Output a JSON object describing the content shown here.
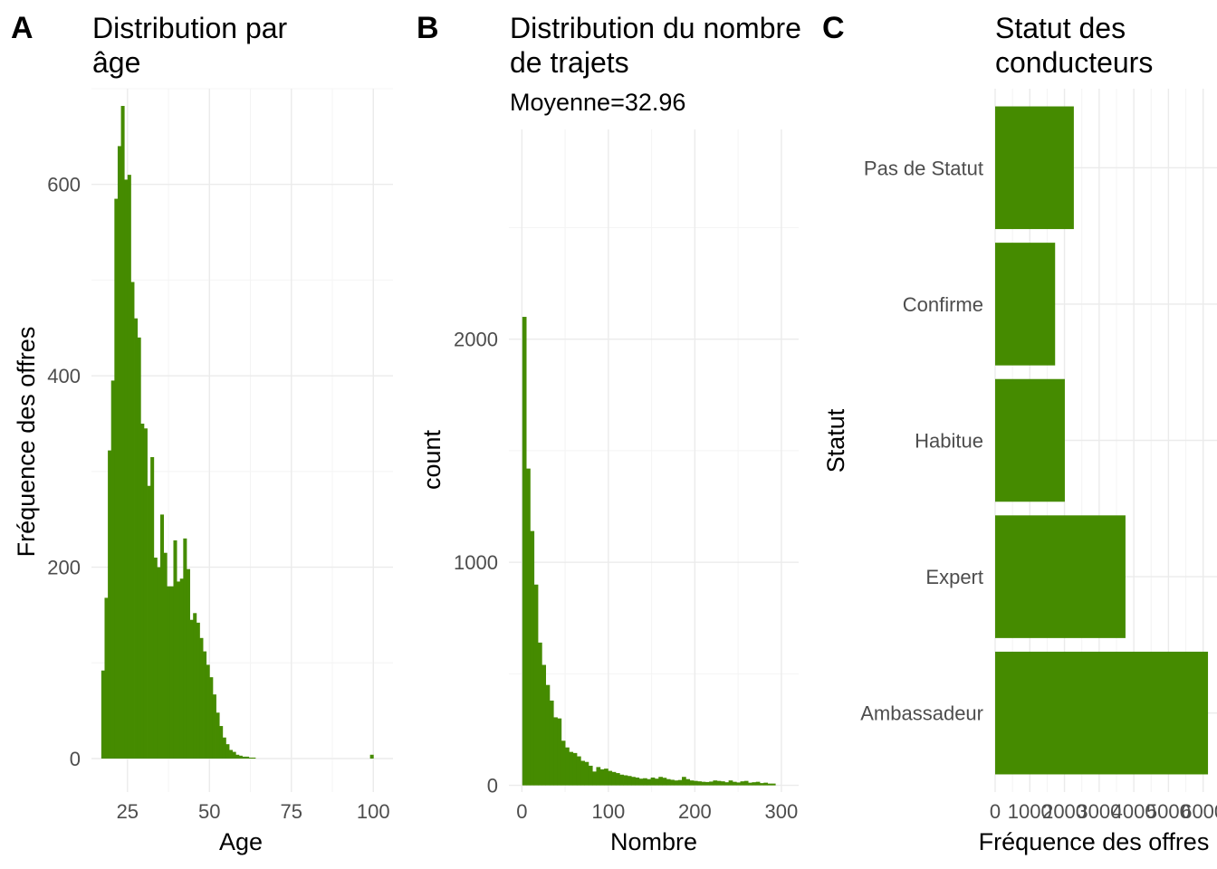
{
  "figure": {
    "tags": [
      "A",
      "B",
      "C"
    ]
  },
  "accent_color": "#458B00",
  "chart_data": [
    {
      "type": "bar",
      "tag": "A",
      "title": [
        "Distribution par",
        "âge"
      ],
      "subtitle": "",
      "xlabel": "Age",
      "ylabel": "Fréquence des offres",
      "xlim": [
        14,
        106
      ],
      "ylim": [
        -35,
        700
      ],
      "xticks": [
        25,
        50,
        75,
        100
      ],
      "yticks": [
        0,
        200,
        400,
        600
      ],
      "bin_start": 17,
      "bin_width": 1,
      "values": [
        92,
        168,
        322,
        395,
        585,
        640,
        682,
        605,
        610,
        498,
        460,
        440,
        350,
        345,
        285,
        315,
        210,
        200,
        255,
        215,
        180,
        180,
        228,
        185,
        188,
        230,
        198,
        145,
        152,
        142,
        126,
        112,
        98,
        85,
        67,
        48,
        34,
        22,
        15,
        9,
        7,
        4,
        3,
        2,
        2,
        1,
        1,
        0,
        0,
        0,
        0,
        0,
        0,
        0,
        0,
        0,
        0,
        0,
        0,
        0,
        0,
        0,
        0,
        0,
        0,
        0,
        0,
        0,
        0,
        0,
        0,
        0,
        0,
        0,
        0,
        0,
        0,
        0,
        0,
        0,
        0,
        0,
        4
      ]
    },
    {
      "type": "bar",
      "tag": "B",
      "title": [
        "Distribution du nombre",
        "de trajets"
      ],
      "subtitle": "Moyenne=32.96",
      "xlabel": "Nombre",
      "ylabel": "count",
      "xlim": [
        -15,
        320
      ],
      "ylim": [
        -30,
        2940
      ],
      "xticks": [
        0,
        100,
        200,
        300
      ],
      "yticks": [
        0,
        1000,
        2000
      ],
      "bin_start": 0.5,
      "bin_width": 4.5,
      "values": [
        2100,
        1420,
        1140,
        900,
        640,
        540,
        450,
        380,
        305,
        300,
        200,
        170,
        150,
        145,
        130,
        110,
        105,
        88,
        62,
        82,
        72,
        75,
        65,
        60,
        55,
        48,
        45,
        42,
        38,
        35,
        30,
        32,
        28,
        35,
        30,
        38,
        34,
        28,
        25,
        22,
        24,
        38,
        28,
        22,
        20,
        18,
        16,
        15,
        17,
        22,
        20,
        18,
        14,
        22,
        16,
        13,
        18,
        20,
        12,
        14,
        16,
        10,
        12,
        8,
        8
      ]
    },
    {
      "type": "bar",
      "tag": "C",
      "orientation": "horizontal",
      "title": [
        "Statut des",
        "conducteurs"
      ],
      "subtitle": "",
      "xlabel": "Fréquence des offres",
      "ylabel": "Statut",
      "xlim": [
        0,
        6400
      ],
      "xticks": [
        0,
        1000,
        2000,
        3000,
        4000,
        5000,
        6000
      ],
      "categories": [
        "Ambassadeur",
        "Expert",
        "Habitue",
        "Confirme",
        "Pas de Statut"
      ],
      "values": [
        6140,
        3760,
        2010,
        1730,
        2270
      ]
    }
  ]
}
